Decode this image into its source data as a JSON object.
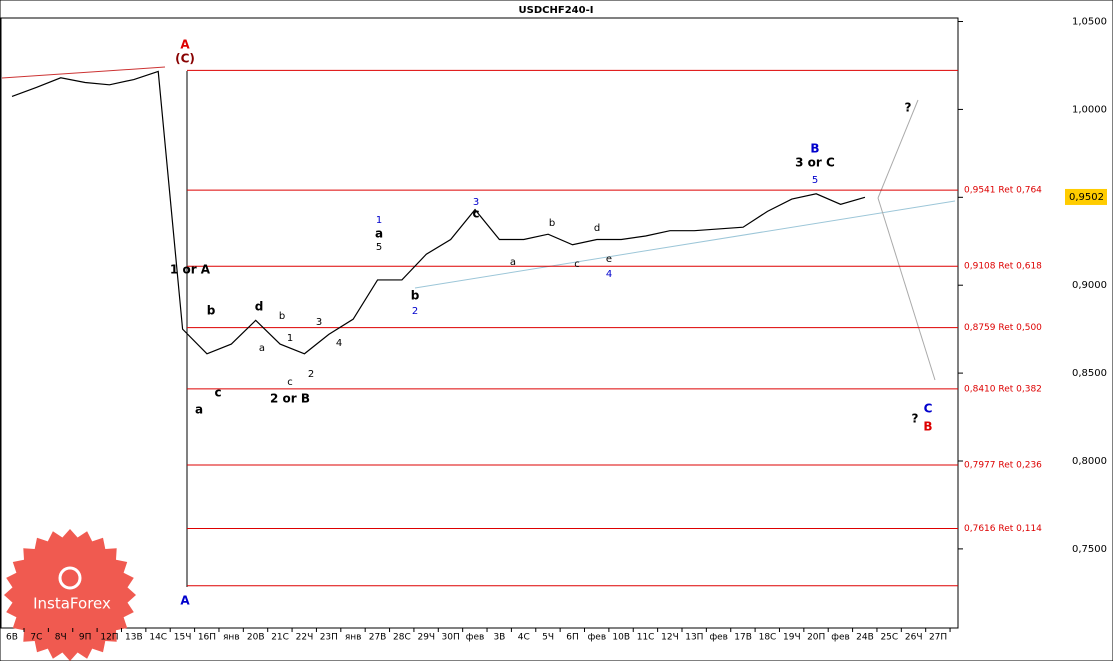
{
  "chart_data": {
    "type": "line",
    "title": "USDCHF240-I",
    "categories": [
      "6В",
      "7С",
      "8Ч",
      "9П",
      "12П",
      "13В",
      "14С",
      "15Ч",
      "16П",
      "янв",
      "20В",
      "21С",
      "22Ч",
      "23П",
      "янв",
      "27В",
      "28С",
      "29Ч",
      "30П",
      "фев",
      "3В",
      "4С",
      "5Ч",
      "6П",
      "фев",
      "10В",
      "11С",
      "12Ч",
      "13П",
      "фев",
      "17В",
      "18С",
      "19Ч",
      "20П",
      "фев",
      "24В",
      "25С",
      "26Ч",
      "27П"
    ],
    "series": [
      {
        "name": "USDCHF",
        "color": "#000000",
        "values": [
          1.0074,
          1.0125,
          1.018,
          1.0153,
          1.014,
          1.017,
          1.0216,
          0.875,
          0.861,
          0.8665,
          0.88,
          0.8665,
          0.861,
          0.872,
          0.8807,
          0.903,
          0.903,
          0.9176,
          0.926,
          0.943,
          0.926,
          0.926,
          0.929,
          0.923,
          0.926,
          0.926,
          0.928,
          0.931,
          0.931,
          0.932,
          0.933,
          0.942,
          0.949,
          0.952,
          0.946,
          0.95,
          null,
          null,
          null
        ]
      }
    ],
    "ylim": [
      0.705,
      1.052
    ],
    "yticks": [
      {
        "value": 1.05,
        "label": "1,0500"
      },
      {
        "value": 1.0,
        "label": "1,0000"
      },
      {
        "value": 0.95,
        "label": "0,9500"
      },
      {
        "value": 0.9,
        "label": "0,9000"
      },
      {
        "value": 0.85,
        "label": "0,8500"
      },
      {
        "value": 0.8,
        "label": "0,8000"
      },
      {
        "value": 0.75,
        "label": "0,7500"
      }
    ],
    "levels": [
      {
        "value": 0.9541,
        "label": "0,9541 Ret 0,764"
      },
      {
        "value": 0.9108,
        "label": "0,9108 Ret 0,618"
      },
      {
        "value": 0.8759,
        "label": "0,8759 Ret 0,500"
      },
      {
        "value": 0.841,
        "label": "0,8410 Ret 0,382"
      },
      {
        "value": 0.7977,
        "label": "0,7977 Ret 0,236"
      },
      {
        "value": 0.7616,
        "label": "0,7616 Ret 0,114"
      }
    ],
    "bounds": [
      1.0222,
      0.729
    ],
    "last_price": {
      "value": 0.9502,
      "label": "0,9502"
    },
    "annotations": [
      "A",
      "(C)",
      "1 or A",
      "A",
      "b",
      "c",
      "a",
      "d",
      "a",
      "b",
      "1",
      "c",
      "2 or B",
      "2",
      "3",
      "4",
      "1",
      "a",
      "5",
      "b",
      "2",
      "3",
      "c",
      "a",
      "b",
      "c",
      "d",
      "e",
      "4",
      "B",
      "3 or C",
      "5",
      "?",
      "?",
      "C",
      "B"
    ],
    "logo": "InstaForex"
  }
}
